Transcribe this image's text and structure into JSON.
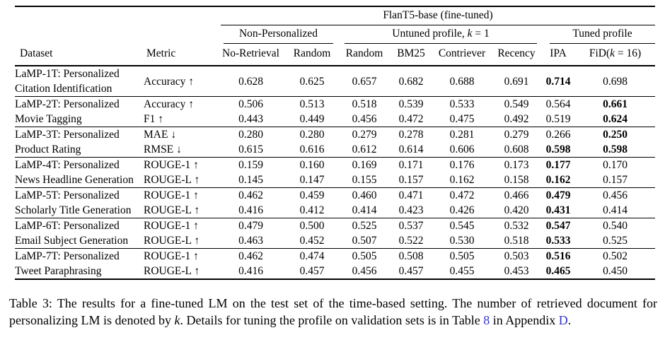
{
  "table": {
    "model_header": "FlanT5-base (fine-tuned)",
    "groups": [
      {
        "label": [
          {
            "t": "Non-Personalized"
          }
        ],
        "span": 2
      },
      {
        "label": [
          {
            "t": "Untuned profile, "
          },
          {
            "t": "k",
            "style": "italic"
          },
          {
            "t": " = 1"
          }
        ],
        "span": 4
      },
      {
        "label": [
          {
            "t": "Tuned profile"
          }
        ],
        "span": 2
      }
    ],
    "columns": [
      {
        "label": [
          {
            "t": "Dataset"
          }
        ],
        "align": "left",
        "name": "col-dataset"
      },
      {
        "label": [
          {
            "t": "Metric"
          }
        ],
        "align": "left",
        "name": "col-metric"
      },
      {
        "label": [
          {
            "t": "No-Retrieval"
          }
        ],
        "align": "center",
        "name": "col-no-retrieval"
      },
      {
        "label": [
          {
            "t": "Random"
          }
        ],
        "align": "center",
        "name": "col-random-np"
      },
      {
        "label": [
          {
            "t": "Random"
          }
        ],
        "align": "center",
        "name": "col-random"
      },
      {
        "label": [
          {
            "t": "BM25"
          }
        ],
        "align": "center",
        "name": "col-bm25"
      },
      {
        "label": [
          {
            "t": "Contriever"
          }
        ],
        "align": "center",
        "name": "col-contriever"
      },
      {
        "label": [
          {
            "t": "Recency"
          }
        ],
        "align": "center",
        "name": "col-recency"
      },
      {
        "label": [
          {
            "t": "IPA"
          }
        ],
        "align": "center",
        "name": "col-ipa"
      },
      {
        "label": [
          {
            "t": "FiD("
          },
          {
            "t": "k",
            "style": "italic"
          },
          {
            "t": " = 16)"
          }
        ],
        "align": "center",
        "name": "col-fid"
      }
    ],
    "rows": [
      {
        "dataset": [
          "LaMP-1T: Personalized",
          "Citation Identification"
        ],
        "metrics": [
          {
            "name": "Accuracy ↑",
            "values": [
              "0.628",
              "0.625",
              "0.657",
              "0.682",
              "0.688",
              "0.691",
              "0.714",
              "0.698"
            ],
            "bold": [
              6
            ]
          }
        ]
      },
      {
        "dataset": [
          "LaMP-2T: Personalized",
          "Movie Tagging"
        ],
        "metrics": [
          {
            "name": "Accuracy ↑",
            "values": [
              "0.506",
              "0.513",
              "0.518",
              "0.539",
              "0.533",
              "0.549",
              "0.564",
              "0.661"
            ],
            "bold": [
              7
            ]
          },
          {
            "name": "F1 ↑",
            "values": [
              "0.443",
              "0.449",
              "0.456",
              "0.472",
              "0.475",
              "0.492",
              "0.519",
              "0.624"
            ],
            "bold": [
              7
            ]
          }
        ]
      },
      {
        "dataset": [
          "LaMP-3T: Personalized",
          "Product Rating"
        ],
        "metrics": [
          {
            "name": "MAE ↓",
            "values": [
              "0.280",
              "0.280",
              "0.279",
              "0.278",
              "0.281",
              "0.279",
              "0.266",
              "0.250"
            ],
            "bold": [
              7
            ]
          },
          {
            "name": "RMSE ↓",
            "values": [
              "0.615",
              "0.616",
              "0.612",
              "0.614",
              "0.606",
              "0.608",
              "0.598",
              "0.598"
            ],
            "bold": [
              6,
              7
            ]
          }
        ]
      },
      {
        "dataset": [
          "LaMP-4T: Personalized",
          "News Headline Generation"
        ],
        "metrics": [
          {
            "name": "ROUGE-1 ↑",
            "values": [
              "0.159",
              "0.160",
              "0.169",
              "0.171",
              "0.176",
              "0.173",
              "0.177",
              "0.170"
            ],
            "bold": [
              6
            ]
          },
          {
            "name": "ROUGE-L ↑",
            "values": [
              "0.145",
              "0.147",
              "0.155",
              "0.157",
              "0.162",
              "0.158",
              "0.162",
              "0.157"
            ],
            "bold": [
              6
            ]
          }
        ]
      },
      {
        "dataset": [
          "LaMP-5T: Personalized",
          "Scholarly Title Generation"
        ],
        "metrics": [
          {
            "name": "ROUGE-1 ↑",
            "values": [
              "0.462",
              "0.459",
              "0.460",
              "0.471",
              "0.472",
              "0.466",
              "0.479",
              "0.456"
            ],
            "bold": [
              6
            ]
          },
          {
            "name": "ROUGE-L ↑",
            "values": [
              "0.416",
              "0.412",
              "0.414",
              "0.423",
              "0.426",
              "0.420",
              "0.431",
              "0.414"
            ],
            "bold": [
              6
            ]
          }
        ]
      },
      {
        "dataset": [
          "LaMP-6T: Personalized",
          "Email Subject Generation"
        ],
        "metrics": [
          {
            "name": "ROUGE-1 ↑",
            "values": [
              "0.479",
              "0.500",
              "0.525",
              "0.537",
              "0.545",
              "0.532",
              "0.547",
              "0.540"
            ],
            "bold": [
              6
            ]
          },
          {
            "name": "ROUGE-L ↑",
            "values": [
              "0.463",
              "0.452",
              "0.507",
              "0.522",
              "0.530",
              "0.518",
              "0.533",
              "0.525"
            ],
            "bold": [
              6
            ]
          }
        ]
      },
      {
        "dataset": [
          "LaMP-7T: Personalized",
          "Tweet Paraphrasing"
        ],
        "metrics": [
          {
            "name": "ROUGE-1 ↑",
            "values": [
              "0.462",
              "0.474",
              "0.505",
              "0.508",
              "0.505",
              "0.503",
              "0.516",
              "0.502"
            ],
            "bold": [
              6
            ]
          },
          {
            "name": "ROUGE-L ↑",
            "values": [
              "0.416",
              "0.457",
              "0.456",
              "0.457",
              "0.455",
              "0.453",
              "0.465",
              "0.450"
            ],
            "bold": [
              6
            ]
          }
        ]
      }
    ]
  },
  "caption": {
    "parts": [
      {
        "t": "Table 3: The results for a fine-tuned LM on the test set of the time-based setting. The number of retrieved document for personalizing LM is denoted by "
      },
      {
        "t": "k",
        "style": "italic"
      },
      {
        "t": ". Details for tuning the profile on validation sets is in Table "
      },
      {
        "t": "8",
        "style": "link",
        "name": "table-8-link"
      },
      {
        "t": " in Appendix "
      },
      {
        "t": "D",
        "style": "link",
        "name": "appendix-d-link"
      },
      {
        "t": "."
      }
    ]
  },
  "colors": {
    "text": "#000000",
    "link_blue": "#3434cb",
    "rule": "#000000"
  }
}
